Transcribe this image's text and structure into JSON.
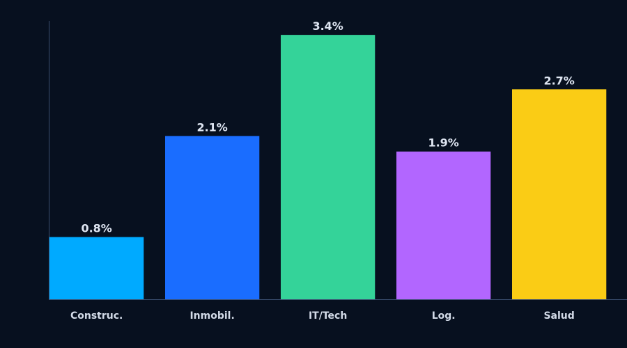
{
  "chart_data": {
    "type": "bar",
    "categories": [
      "Construc.",
      "Inmobil.",
      "IT/Tech",
      "Log.",
      "Salud"
    ],
    "values": [
      0.8,
      2.1,
      3.4,
      1.9,
      2.7
    ],
    "value_labels": [
      "0.8%",
      "2.1%",
      "3.4%",
      "1.9%",
      "2.7%"
    ],
    "colors": [
      "#00aaff",
      "#1a6dff",
      "#34d399",
      "#b266ff",
      "#facc15"
    ],
    "ylim": [
      0,
      3.58
    ]
  }
}
